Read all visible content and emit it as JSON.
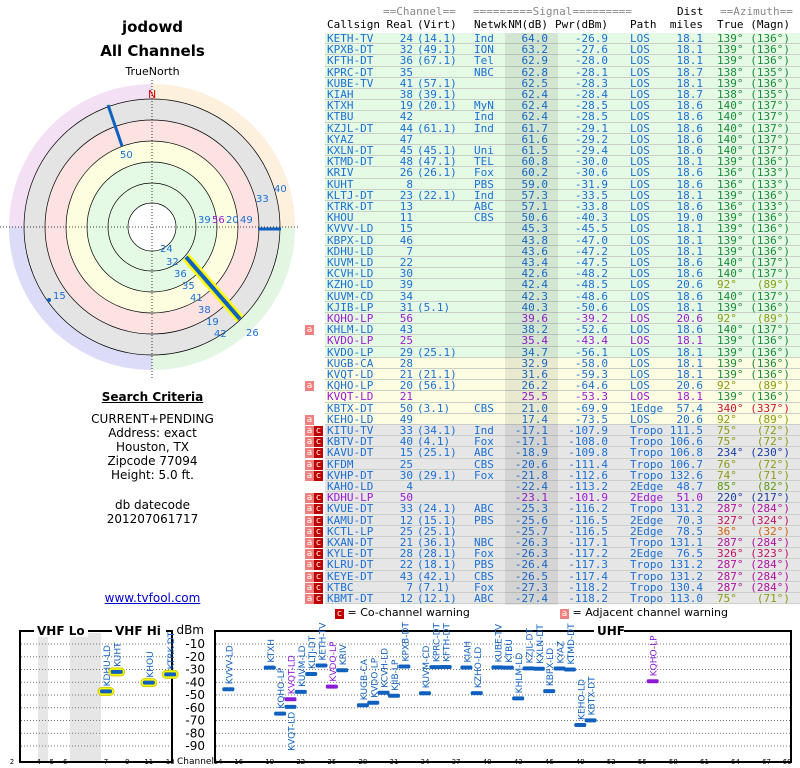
{
  "header": {
    "user": "jodowd",
    "subtitle": "All Channels"
  },
  "polar": {
    "north_label": "TrueNorth",
    "n_label": "N",
    "labels": [
      "50",
      "33",
      "40",
      "39",
      "56",
      "20",
      "49",
      "24",
      "32",
      "36",
      "35",
      "41",
      "38",
      "19",
      "42",
      "26",
      "15"
    ]
  },
  "search": {
    "title": "Search Criteria",
    "lines": [
      "CURRENT+PENDING",
      "Address: exact",
      "Houston, TX",
      "Zipcode 77094",
      "Height: 5.0 ft."
    ],
    "db_label": "db datecode",
    "db_value": "201207061717",
    "link": "www.tvfool.com"
  },
  "table": {
    "group_headers": {
      "channel": "==Channel==",
      "signal": "=========Signal=========",
      "dist": "Dist",
      "azimuth": "==Azimuth=="
    },
    "columns": [
      "Callsign",
      "Real",
      "(Virt)",
      "Netwk",
      "NM(dB)",
      "Pwr(dBm)",
      "Path",
      "miles",
      "True",
      "(Magn)"
    ],
    "colors": {
      "blue": "#1a6fd6",
      "purple": "#9b1ad6",
      "green_bg": "#e4fae4",
      "yellow_bg": "#fdfde2",
      "grey_bg": "#e6e6e6"
    },
    "rows": [
      [
        "KETH-TV",
        "24",
        "(14.1)",
        "Ind",
        "64.0",
        "-26.9",
        "LOS",
        "18.1",
        "139°",
        "(136°)",
        "g",
        "",
        "b",
        "az1"
      ],
      [
        "KPXB-DT",
        "32",
        "(49.1)",
        "ION",
        "63.2",
        "-27.6",
        "LOS",
        "18.1",
        "139°",
        "(136°)",
        "g",
        "",
        "b",
        "az1"
      ],
      [
        "KFTH-DT",
        "36",
        "(67.1)",
        "Tel",
        "62.9",
        "-28.0",
        "LOS",
        "18.1",
        "139°",
        "(136°)",
        "g",
        "",
        "b",
        "az1"
      ],
      [
        "KPRC-DT",
        "35",
        "",
        "NBC",
        "62.8",
        "-28.1",
        "LOS",
        "18.7",
        "138°",
        "(135°)",
        "g",
        "",
        "b",
        "az1"
      ],
      [
        "KUBE-TV",
        "41",
        "(57.1)",
        "",
        "62.5",
        "-28.3",
        "LOS",
        "18.1",
        "139°",
        "(136°)",
        "g",
        "",
        "b",
        "az1"
      ],
      [
        "KIAH",
        "38",
        "(39.1)",
        "",
        "62.4",
        "-28.4",
        "LOS",
        "18.7",
        "138°",
        "(135°)",
        "g",
        "",
        "b",
        "az1"
      ],
      [
        "KTXH",
        "19",
        "(20.1)",
        "MyN",
        "62.4",
        "-28.5",
        "LOS",
        "18.6",
        "140°",
        "(137°)",
        "g",
        "",
        "b",
        "az1"
      ],
      [
        "KTBU",
        "42",
        "",
        "Ind",
        "62.4",
        "-28.5",
        "LOS",
        "18.6",
        "140°",
        "(137°)",
        "g",
        "",
        "b",
        "az1"
      ],
      [
        "KZJL-DT",
        "44",
        "(61.1)",
        "Ind",
        "61.7",
        "-29.1",
        "LOS",
        "18.6",
        "140°",
        "(137°)",
        "g",
        "",
        "b",
        "az1"
      ],
      [
        "KYAZ",
        "47",
        "",
        "",
        "61.6",
        "-29.2",
        "LOS",
        "18.6",
        "140°",
        "(137°)",
        "g",
        "",
        "b",
        "az1"
      ],
      [
        "KXLN-DT",
        "45",
        "(45.1)",
        "Uni",
        "61.5",
        "-29.4",
        "LOS",
        "18.6",
        "140°",
        "(137°)",
        "g",
        "",
        "b",
        "az1"
      ],
      [
        "KTMD-DT",
        "48",
        "(47.1)",
        "TEL",
        "60.8",
        "-30.0",
        "LOS",
        "18.1",
        "139°",
        "(136°)",
        "g",
        "",
        "b",
        "az1"
      ],
      [
        "KRIV",
        "26",
        "(26.1)",
        "Fox",
        "60.2",
        "-30.6",
        "LOS",
        "18.6",
        "136°",
        "(133°)",
        "g",
        "",
        "b",
        "az1"
      ],
      [
        "KUHT",
        "8",
        "",
        "PBS",
        "59.0",
        "-31.9",
        "LOS",
        "18.6",
        "136°",
        "(133°)",
        "g",
        "",
        "b",
        "az1"
      ],
      [
        "KLTJ-DT",
        "23",
        "(22.1)",
        "Ind",
        "57.3",
        "-33.5",
        "LOS",
        "18.1",
        "139°",
        "(136°)",
        "g",
        "",
        "b",
        "az1"
      ],
      [
        "KTRK-DT",
        "13",
        "",
        "ABC",
        "57.1",
        "-33.8",
        "LOS",
        "18.6",
        "136°",
        "(133°)",
        "g",
        "",
        "b",
        "az1"
      ],
      [
        "KHOU",
        "11",
        "",
        "CBS",
        "50.6",
        "-40.3",
        "LOS",
        "19.0",
        "139°",
        "(136°)",
        "g",
        "",
        "b",
        "az1"
      ],
      [
        "KVVV-LD",
        "15",
        "",
        "",
        "45.3",
        "-45.5",
        "LOS",
        "18.1",
        "139°",
        "(136°)",
        "g",
        "",
        "b",
        "az1"
      ],
      [
        "KBPX-LD",
        "46",
        "",
        "",
        "43.8",
        "-47.0",
        "LOS",
        "18.1",
        "139°",
        "(136°)",
        "g",
        "",
        "b",
        "az1"
      ],
      [
        "KDHU-LD",
        "7",
        "",
        "",
        "43.6",
        "-47.2",
        "LOS",
        "18.1",
        "139°",
        "(136°)",
        "g",
        "",
        "b",
        "az1"
      ],
      [
        "KUVM-LD",
        "22",
        "",
        "",
        "43.4",
        "-47.5",
        "LOS",
        "18.6",
        "140°",
        "(137°)",
        "g",
        "",
        "b",
        "az1"
      ],
      [
        "KCVH-LD",
        "30",
        "",
        "",
        "42.6",
        "-48.2",
        "LOS",
        "18.6",
        "140°",
        "(137°)",
        "g",
        "",
        "b",
        "az1"
      ],
      [
        "KZHO-LD",
        "39",
        "",
        "",
        "42.4",
        "-48.5",
        "LOS",
        "20.6",
        "92°",
        "(89°)",
        "g",
        "",
        "b",
        "az2"
      ],
      [
        "KUVM-CD",
        "34",
        "",
        "",
        "42.3",
        "-48.6",
        "LOS",
        "18.6",
        "140°",
        "(137°)",
        "g",
        "",
        "b",
        "az1"
      ],
      [
        "KJIB-LP",
        "31",
        "(5.1)",
        "",
        "40.3",
        "-50.6",
        "LOS",
        "18.1",
        "139°",
        "(136°)",
        "g",
        "",
        "b",
        "az1"
      ],
      [
        "KQHO-LP",
        "56",
        "",
        "",
        "39.6",
        "-39.2",
        "LOS",
        "20.6",
        "92°",
        "(89°)",
        "g",
        "",
        "p",
        "az2"
      ],
      [
        "KHLM-LD",
        "43",
        "",
        "",
        "38.2",
        "-52.6",
        "LOS",
        "18.6",
        "140°",
        "(137°)",
        "g",
        "a",
        "b",
        "az1"
      ],
      [
        "KVDO-LP",
        "25",
        "",
        "",
        "35.4",
        "-43.4",
        "LOS",
        "18.1",
        "139°",
        "(136°)",
        "g",
        "",
        "p",
        "az1"
      ],
      [
        "KVDO-LP",
        "29",
        "(25.1)",
        "",
        "34.7",
        "-56.1",
        "LOS",
        "18.1",
        "139°",
        "(136°)",
        "g",
        "",
        "b",
        "az1"
      ],
      [
        "KUGB-CA",
        "28",
        "",
        "",
        "32.9",
        "-58.0",
        "LOS",
        "18.1",
        "139°",
        "(136°)",
        "y",
        "",
        "b",
        "az1"
      ],
      [
        "KVQT-LD",
        "21",
        "(21.1)",
        "",
        "31.6",
        "-59.3",
        "LOS",
        "18.1",
        "139°",
        "(136°)",
        "y",
        "",
        "b",
        "az1"
      ],
      [
        "KQHO-LP",
        "20",
        "(56.1)",
        "",
        "26.2",
        "-64.6",
        "LOS",
        "20.6",
        "92°",
        "(89°)",
        "y",
        "a",
        "b",
        "az2"
      ],
      [
        "KVQT-LD",
        "21",
        "",
        "",
        "25.5",
        "-53.3",
        "LOS",
        "18.1",
        "139°",
        "(136°)",
        "y",
        "",
        "p",
        "az1"
      ],
      [
        "KBTX-DT",
        "50",
        "(3.1)",
        "CBS",
        "21.0",
        "-69.9",
        "1Edge",
        "57.4",
        "340°",
        "(337°)",
        "y",
        "",
        "b",
        "az3"
      ],
      [
        "KEHO-LD",
        "49",
        "",
        "",
        "17.4",
        "-73.5",
        "LOS",
        "20.6",
        "92°",
        "(89°)",
        "y",
        "a",
        "b",
        "az2"
      ],
      [
        "KITU-TV",
        "33",
        "(34.1)",
        "Ind",
        "-17.1",
        "-107.9",
        "Tropo",
        "111.5",
        "75°",
        "(72°)",
        "x",
        "ac",
        "b",
        "az2"
      ],
      [
        "KBTV-DT",
        "40",
        "(4.1)",
        "Fox",
        "-17.1",
        "-108.0",
        "Tropo",
        "106.6",
        "75°",
        "(72°)",
        "x",
        "ac",
        "b",
        "az2"
      ],
      [
        "KAVU-DT",
        "15",
        "(25.1)",
        "ABC",
        "-18.9",
        "-109.8",
        "Tropo",
        "106.8",
        "234°",
        "(230°)",
        "x",
        "ac",
        "b",
        "az4"
      ],
      [
        "KFDM",
        "25",
        "",
        "CBS",
        "-20.6",
        "-111.4",
        "Tropo",
        "106.7",
        "76°",
        "(72°)",
        "x",
        "ac",
        "b",
        "az2"
      ],
      [
        "KVHP-DT",
        "30",
        "(29.1)",
        "Fox",
        "-21.8",
        "-112.6",
        "Tropo",
        "132.6",
        "74°",
        "(71°)",
        "x",
        "ac",
        "b",
        "az2"
      ],
      [
        "KAHO-LD",
        "4",
        "",
        "",
        "-22.4",
        "-113.2",
        "2Edge",
        "48.7",
        "85°",
        "(82°)",
        "x",
        "",
        "b",
        "az5"
      ],
      [
        "KDHU-LP",
        "50",
        "",
        "",
        "-23.1",
        "-101.9",
        "2Edge",
        "51.0",
        "220°",
        "(217°)",
        "x",
        "ac",
        "p",
        "az4"
      ],
      [
        "KVUE-DT",
        "33",
        "(24.1)",
        "ABC",
        "-25.3",
        "-116.2",
        "Tropo",
        "131.2",
        "287°",
        "(284°)",
        "x",
        "ac",
        "b",
        "az6"
      ],
      [
        "KAMU-DT",
        "12",
        "(15.1)",
        "PBS",
        "-25.6",
        "-116.5",
        "2Edge",
        "70.3",
        "327°",
        "(324°)",
        "x",
        "ac",
        "b",
        "az7"
      ],
      [
        "KCTL-LP",
        "25",
        "(25.1)",
        "",
        "-25.7",
        "-116.5",
        "2Edge",
        "78.5",
        "36°",
        "(32°)",
        "x",
        "ac",
        "b",
        "az8"
      ],
      [
        "KXAN-DT",
        "21",
        "(36.1)",
        "NBC",
        "-26.3",
        "-117.1",
        "Tropo",
        "131.1",
        "287°",
        "(284°)",
        "x",
        "ac",
        "b",
        "az6"
      ],
      [
        "KYLE-DT",
        "28",
        "(28.1)",
        "Fox",
        "-26.3",
        "-117.2",
        "2Edge",
        "76.5",
        "326°",
        "(323°)",
        "x",
        "ac",
        "b",
        "az7"
      ],
      [
        "KLRU-DT",
        "22",
        "(18.1)",
        "PBS",
        "-26.4",
        "-117.3",
        "Tropo",
        "131.2",
        "287°",
        "(284°)",
        "x",
        "ac",
        "b",
        "az6"
      ],
      [
        "KEYE-DT",
        "43",
        "(42.1)",
        "CBS",
        "-26.5",
        "-117.4",
        "Tropo",
        "131.2",
        "287°",
        "(284°)",
        "x",
        "ac",
        "b",
        "az6"
      ],
      [
        "KTBC",
        "7",
        "(7.1)",
        "Fox",
        "-27.3",
        "-118.2",
        "Tropo",
        "130.4",
        "287°",
        "(284°)",
        "x",
        "ac",
        "b",
        "az6"
      ],
      [
        "KBMT-DT",
        "12",
        "(12.1)",
        "ABC",
        "-27.4",
        "-118.2",
        "Tropo",
        "113.0",
        "75°",
        "(71°)",
        "x",
        "ac",
        "b",
        "az2"
      ]
    ],
    "az_colors": {
      "az1": "#1a8a3a",
      "az2": "#8a9a10",
      "az3": "#d01030",
      "az4": "#1a3aa0",
      "az5": "#5a9a10",
      "az6": "#b010a0",
      "az7": "#c01060",
      "az8": "#d06010"
    }
  },
  "legend": {
    "co": "= Co-channel warning",
    "adj": "= Adjacent channel warning",
    "a": "a",
    "c": "c"
  },
  "chart_data": {
    "type": "scatter",
    "ylabel": "dBm",
    "xlabel": "Channel",
    "bands": [
      "VHF Lo",
      "VHF Hi",
      "UHF"
    ],
    "yticks": [
      "-10",
      "-20",
      "-30",
      "-40",
      "-50",
      "-60",
      "-70",
      "-80",
      "-90"
    ],
    "ylim": [
      -95,
      0
    ],
    "vhf_ticks": [
      "2",
      "4",
      "5",
      "6",
      "7",
      "9",
      "11",
      "13"
    ],
    "uhf_ticks": [
      "14",
      "16",
      "19",
      "22",
      "25",
      "28",
      "31",
      "34",
      "37",
      "40",
      "43",
      "46",
      "49",
      "52",
      "55",
      "58",
      "61",
      "64",
      "67",
      "69"
    ],
    "points": [
      [
        "KDHU-LD",
        7,
        -47.2,
        "b",
        1
      ],
      [
        "KUHT",
        8,
        -31.9,
        "b",
        1
      ],
      [
        "KHOU",
        11,
        -40.3,
        "b",
        1
      ],
      [
        "KTRK-DT",
        13,
        -33.8,
        "b",
        1
      ],
      [
        "KVVV-LD",
        15,
        -45.5,
        "b",
        0
      ],
      [
        "KTXH",
        19,
        -28.5,
        "b",
        0
      ],
      [
        "KQHO-LP",
        20,
        -64.6,
        "b",
        0
      ],
      [
        "KVQT-LD",
        21,
        -53.3,
        "p",
        0
      ],
      [
        "KVQT-LD",
        21,
        -59.3,
        "b",
        0
      ],
      [
        "KUVM-LD",
        22,
        -47.5,
        "b",
        0
      ],
      [
        "KLTJ-DT",
        23,
        -33.5,
        "b",
        0
      ],
      [
        "KETH-TV",
        24,
        -26.9,
        "b",
        0
      ],
      [
        "KVDO-LP",
        25,
        -43.4,
        "p",
        0
      ],
      [
        "KRIV",
        26,
        -30.6,
        "b",
        0
      ],
      [
        "KUGB-CA",
        28,
        -58.0,
        "b",
        0
      ],
      [
        "KVDO-LP",
        29,
        -56.1,
        "b",
        0
      ],
      [
        "KCVH-LD",
        30,
        -48.2,
        "b",
        0
      ],
      [
        "KJIB-LP",
        31,
        -50.6,
        "b",
        0
      ],
      [
        "KPXB-DT",
        32,
        -27.6,
        "b",
        0
      ],
      [
        "KUVM-CD",
        34,
        -48.6,
        "b",
        0
      ],
      [
        "KPRC-DT",
        35,
        -28.1,
        "b",
        0
      ],
      [
        "KFTH-DT",
        36,
        -28.0,
        "b",
        0
      ],
      [
        "KIAH",
        38,
        -28.4,
        "b",
        0
      ],
      [
        "KZHO-LD",
        39,
        -48.5,
        "b",
        0
      ],
      [
        "KUBE-TV",
        41,
        -28.3,
        "b",
        0
      ],
      [
        "KTBU",
        42,
        -28.5,
        "b",
        0
      ],
      [
        "KHLM-LD",
        43,
        -52.6,
        "b",
        0
      ],
      [
        "KZJL-DT",
        44,
        -29.1,
        "b",
        0
      ],
      [
        "KXLN-DT",
        45,
        -29.4,
        "b",
        0
      ],
      [
        "KBPX-LD",
        46,
        -47.0,
        "b",
        0
      ],
      [
        "KYAZ",
        47,
        -29.2,
        "b",
        0
      ],
      [
        "KTMD-DT",
        48,
        -30.0,
        "b",
        0
      ],
      [
        "KEHO-LD",
        49,
        -73.5,
        "b",
        0
      ],
      [
        "KBTX-DT",
        50,
        -69.9,
        "b",
        0
      ],
      [
        "KQHO-LP",
        56,
        -39.2,
        "p",
        0
      ]
    ]
  }
}
